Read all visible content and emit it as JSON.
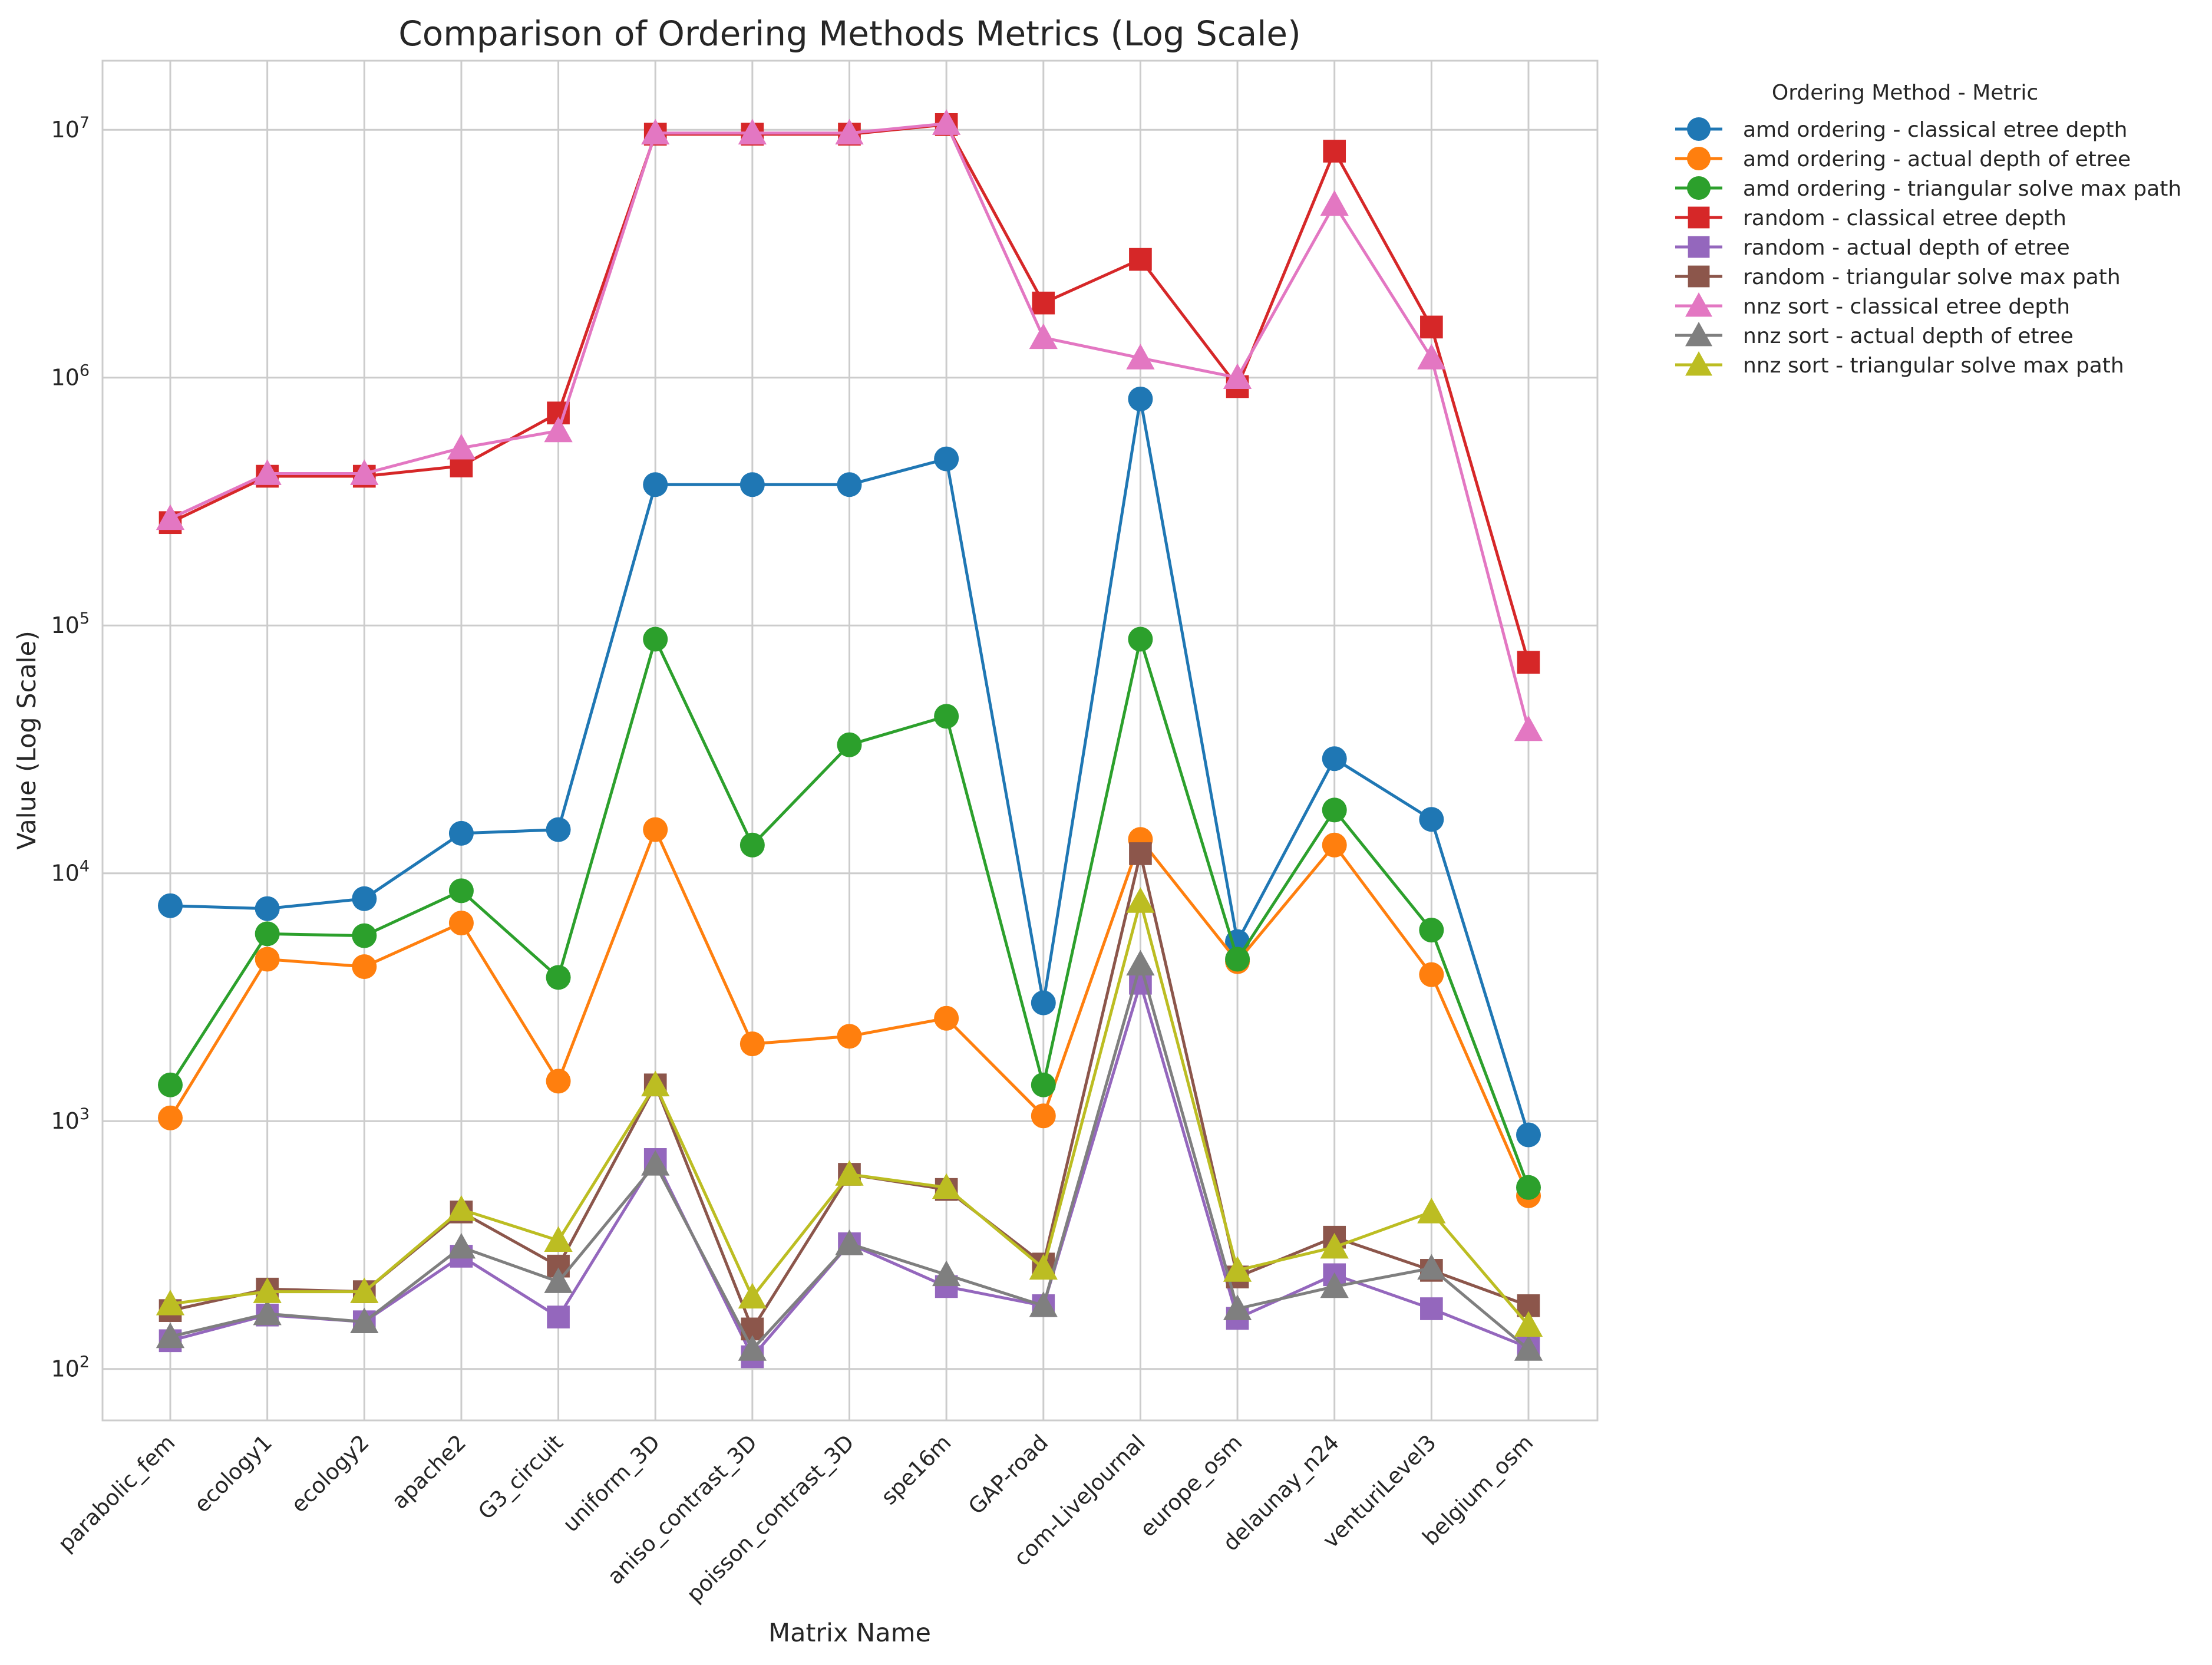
{
  "chart_data": {
    "type": "line",
    "title": "Comparison of Ordering Methods Metrics (Log Scale)",
    "xlabel": "Matrix Name",
    "ylabel": "Value (Log Scale)",
    "yscale": "log",
    "ylim": [
      62,
      19000000
    ],
    "yticks": [
      {
        "value": 100,
        "base": "10",
        "exp": "2"
      },
      {
        "value": 1000,
        "base": "10",
        "exp": "3"
      },
      {
        "value": 10000,
        "base": "10",
        "exp": "4"
      },
      {
        "value": 100000,
        "base": "10",
        "exp": "5"
      },
      {
        "value": 1000000,
        "base": "10",
        "exp": "6"
      },
      {
        "value": 10000000,
        "base": "10",
        "exp": "7"
      }
    ],
    "grid": true,
    "legend_title": "Ordering Method - Metric",
    "legend_position": "outside-right-top",
    "categories": [
      "parabolic_fem",
      "ecology1",
      "ecology2",
      "apache2",
      "G3_circuit",
      "uniform_3D",
      "aniso_contrast_3D",
      "poisson_contrast_3D",
      "spe16m",
      "GAP-road",
      "com-LiveJournal",
      "europe_osm",
      "delaunay_n24",
      "venturiLevel3",
      "belgium_osm"
    ],
    "series": [
      {
        "name": "amd ordering - classical etree depth",
        "color": "#1f77b4",
        "marker": "circle",
        "values": [
          7400,
          7200,
          7900,
          14500,
          15000,
          370000,
          370000,
          370000,
          470000,
          3000,
          820000,
          5300,
          29000,
          16500,
          880
        ]
      },
      {
        "name": "amd ordering - actual depth of etree",
        "color": "#ff7f0e",
        "marker": "circle",
        "values": [
          1030,
          4500,
          4200,
          6300,
          1450,
          15000,
          2050,
          2200,
          2600,
          1050,
          13700,
          4400,
          13000,
          3900,
          500
        ]
      },
      {
        "name": "amd ordering - triangular solve max path",
        "color": "#2ca02c",
        "marker": "circle",
        "values": [
          1400,
          5700,
          5600,
          8500,
          3800,
          88000,
          13000,
          33000,
          43000,
          1400,
          88000,
          4500,
          18000,
          5900,
          540
        ]
      },
      {
        "name": "random - classical etree depth",
        "color": "#d62728",
        "marker": "square",
        "values": [
          260000,
          400000,
          400000,
          440000,
          720000,
          9600000,
          9600000,
          9600000,
          10500000,
          2000000,
          3000000,
          920000,
          8200000,
          1600000,
          71000
        ]
      },
      {
        "name": "random - actual depth of etree",
        "color": "#9467bd",
        "marker": "square",
        "values": [
          130,
          165,
          155,
          285,
          162,
          700,
          112,
          320,
          215,
          180,
          3600,
          160,
          240,
          175,
          122
        ]
      },
      {
        "name": "random - triangular solve max path",
        "color": "#8c564b",
        "marker": "square",
        "values": [
          172,
          210,
          205,
          430,
          260,
          1400,
          145,
          610,
          530,
          265,
          12000,
          235,
          340,
          250,
          180
        ]
      },
      {
        "name": "nnz sort - classical etree depth",
        "color": "#e377c2",
        "marker": "triangle",
        "values": [
          270000,
          410000,
          410000,
          520000,
          610000,
          9700000,
          9700000,
          9700000,
          10600000,
          1450000,
          1200000,
          1000000,
          5000000,
          1200000,
          38000
        ]
      },
      {
        "name": "nnz sort - actual depth of etree",
        "color": "#7f7f7f",
        "marker": "triangle",
        "values": [
          135,
          167,
          155,
          310,
          225,
          670,
          120,
          320,
          240,
          180,
          4300,
          175,
          215,
          255,
          120
        ]
      },
      {
        "name": "nnz sort - triangular solve max path",
        "color": "#bcbd22",
        "marker": "triangle",
        "values": [
          183,
          205,
          205,
          440,
          330,
          1400,
          195,
          610,
          540,
          255,
          7700,
          250,
          310,
          430,
          150
        ]
      }
    ]
  }
}
